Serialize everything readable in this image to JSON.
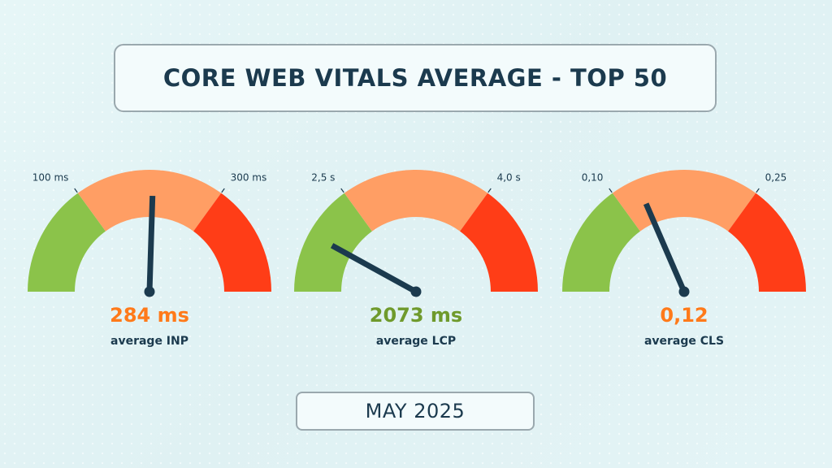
{
  "header": {
    "title": "CORE WEB VITALS AVERAGE - TOP 50"
  },
  "footer": {
    "date": "MAY 2025"
  },
  "colors": {
    "good": "#8bc34a",
    "needs_improvement": "#ff9e64",
    "poor": "#ff3d17",
    "needle": "#1b3a4e",
    "text": "#1b3a4e",
    "value_orange": "#ff7a1a",
    "value_green": "#6f9a2c"
  },
  "chart_data": [
    {
      "type": "gauge",
      "title": "CORE WEB VITALS AVERAGE - TOP 50",
      "metric": "INP",
      "caption": "average INP",
      "value": 284,
      "value_label": "284 ms",
      "value_color": "#ff7a1a",
      "thresholds": [
        {
          "value": 100,
          "label": "100 ms"
        },
        {
          "value": 300,
          "label": "300 ms"
        }
      ],
      "needle_fraction": 0.51,
      "segments": [
        "good",
        "needs-improvement",
        "poor"
      ]
    },
    {
      "type": "gauge",
      "title": "CORE WEB VITALS AVERAGE - TOP 50",
      "metric": "LCP",
      "caption": "average LCP",
      "value": 2073,
      "value_label": "2073 ms",
      "value_color": "#6f9a2c",
      "thresholds": [
        {
          "value": 2.5,
          "label": "2,5 s"
        },
        {
          "value": 4.0,
          "label": "4,0 s"
        }
      ],
      "needle_fraction": 0.16,
      "segments": [
        "good",
        "needs-improvement",
        "poor"
      ]
    },
    {
      "type": "gauge",
      "title": "CORE WEB VITALS AVERAGE - TOP 50",
      "metric": "CLS",
      "caption": "average CLS",
      "value": 0.12,
      "value_label": "0,12",
      "value_color": "#ff7a1a",
      "thresholds": [
        {
          "value": 0.1,
          "label": "0,10"
        },
        {
          "value": 0.25,
          "label": "0,25"
        }
      ],
      "needle_fraction": 0.37,
      "segments": [
        "good",
        "needs-improvement",
        "poor"
      ]
    }
  ]
}
